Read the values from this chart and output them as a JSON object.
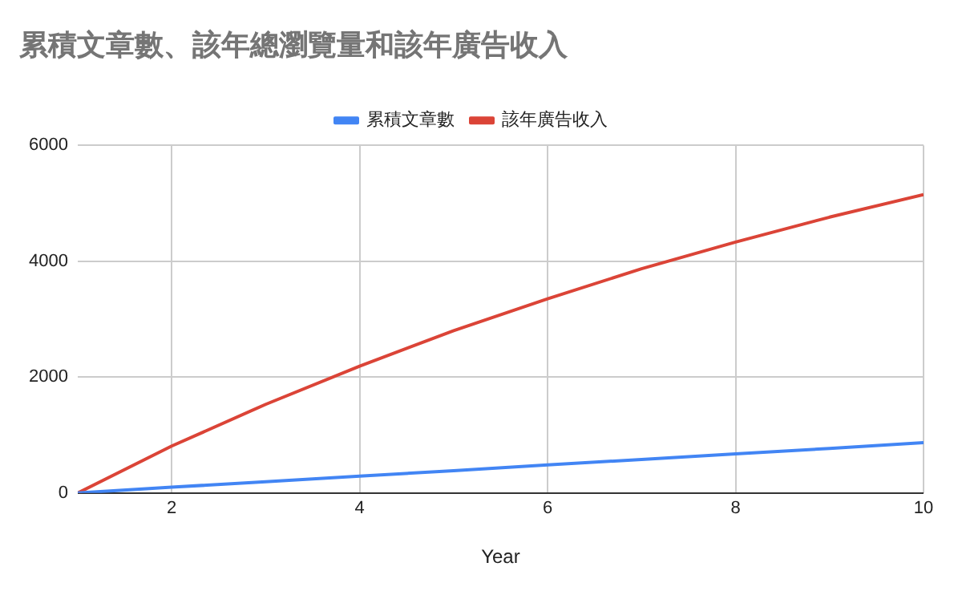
{
  "chart_data": {
    "type": "line",
    "title": "累積文章數、該年總瀏覽量和該年廣告收入",
    "xlabel": "Year",
    "x": [
      1,
      2,
      3,
      4,
      5,
      6,
      7,
      8,
      9,
      10
    ],
    "series": [
      {
        "name": "累積文章數",
        "color": "#4285f4",
        "values": [
          0,
          100,
          195,
          290,
          385,
          485,
          580,
          675,
          770,
          870
        ]
      },
      {
        "name": "該年廣告收入",
        "color": "#db4437",
        "values": [
          0,
          810,
          1530,
          2190,
          2800,
          3350,
          3870,
          4330,
          4760,
          5150
        ]
      }
    ],
    "xlim": [
      1,
      10
    ],
    "xticks": [
      2,
      4,
      6,
      8,
      10
    ],
    "ylim": [
      0,
      6000
    ],
    "yticks": [
      0,
      2000,
      4000,
      6000
    ],
    "grid": true,
    "legend": "top",
    "marker": "none",
    "line_style": "solid"
  }
}
